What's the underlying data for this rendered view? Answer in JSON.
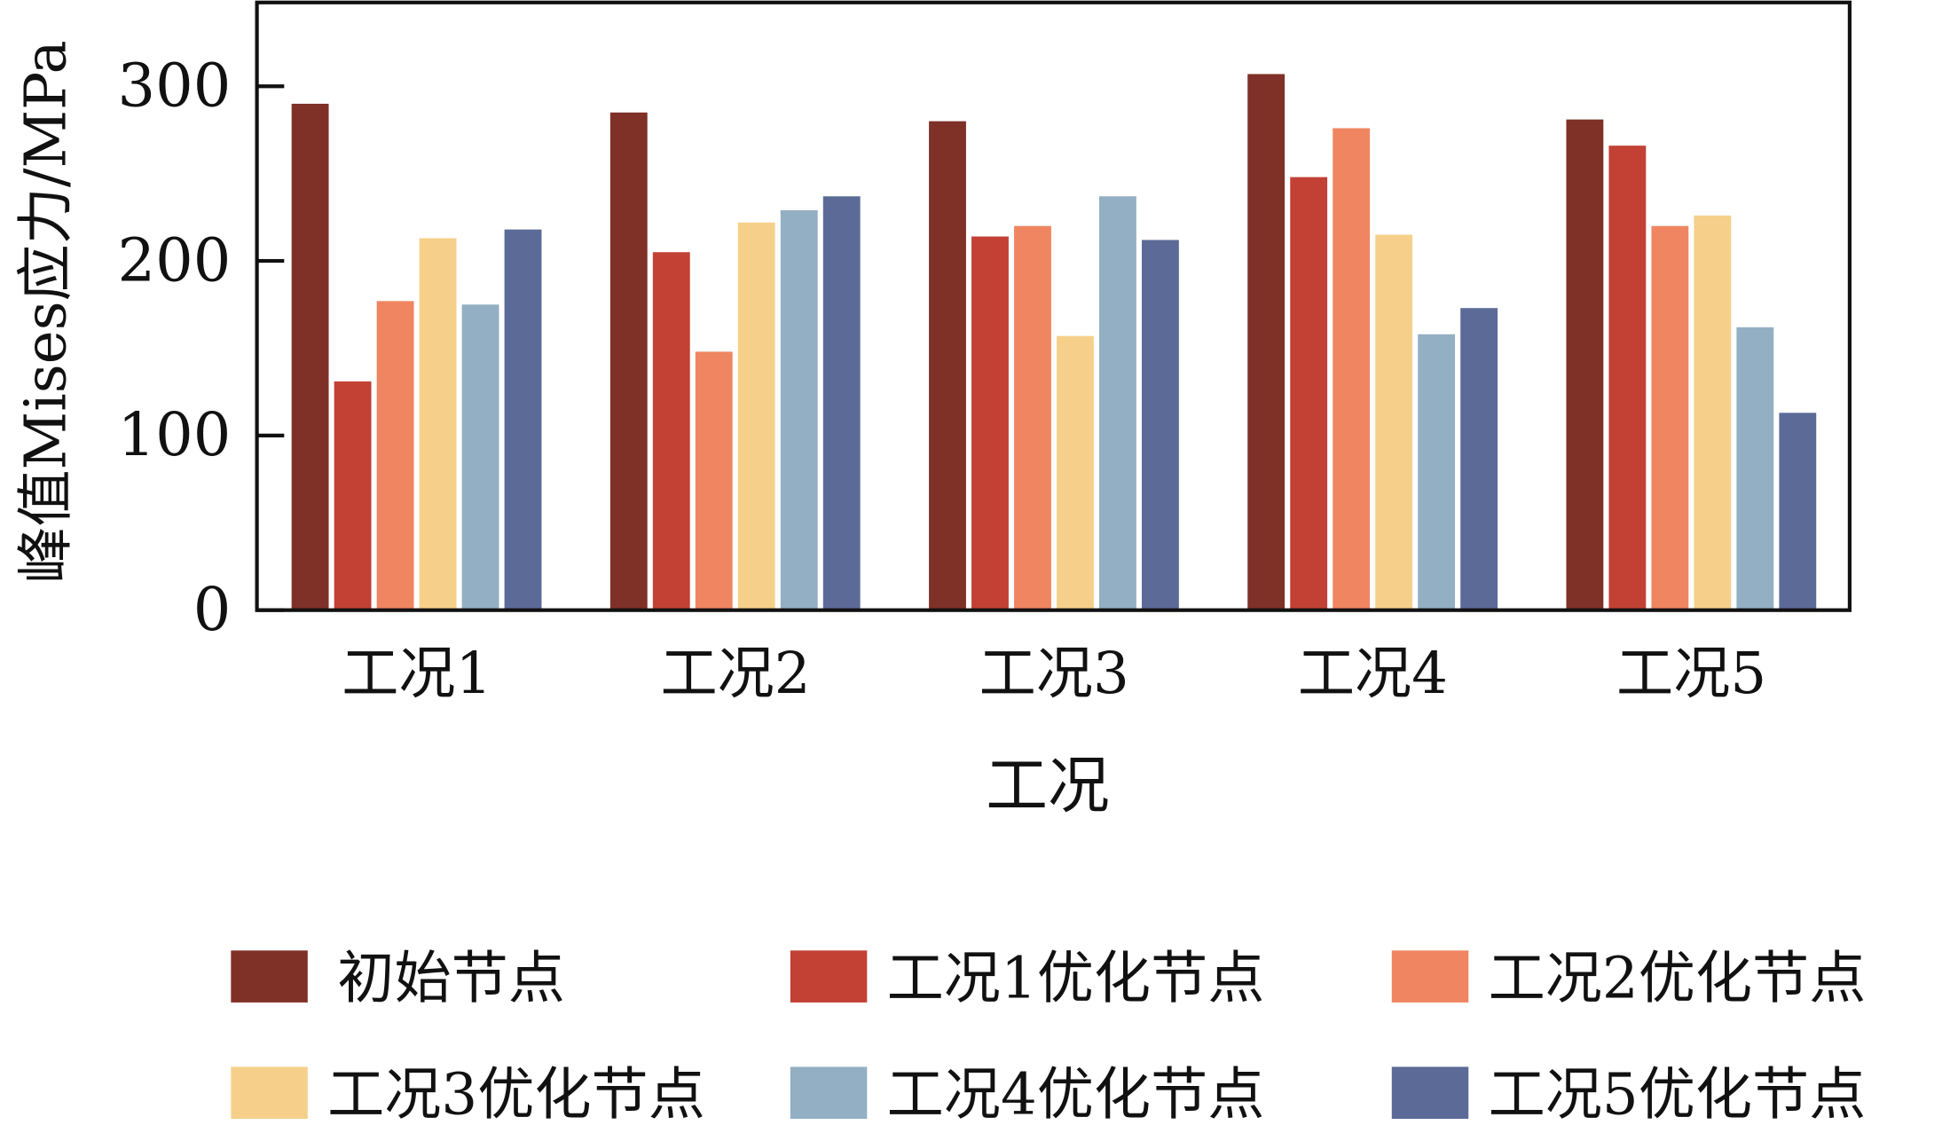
{
  "chart_data": {
    "type": "bar",
    "title": "",
    "xlabel": "工况",
    "ylabel": "峰值Mises应力/MPa",
    "ylim": [
      0,
      348
    ],
    "yticks": [
      0,
      100,
      200,
      300
    ],
    "grid": false,
    "legend_position": "bottom",
    "categories": [
      "工况1",
      "工况2",
      "工况3",
      "工况4",
      "工况5"
    ],
    "series": [
      {
        "name": "初始节点",
        "color": "#7f3128",
        "values": [
          290,
          285,
          280,
          307,
          281
        ]
      },
      {
        "name": "工况1优化节点",
        "color": "#c24034",
        "values": [
          131,
          205,
          214,
          248,
          266
        ]
      },
      {
        "name": "工况2优化节点",
        "color": "#ef8661",
        "values": [
          177,
          148,
          220,
          276,
          220
        ]
      },
      {
        "name": "工况3优化节点",
        "color": "#f6d08a",
        "values": [
          213,
          222,
          157,
          215,
          226
        ]
      },
      {
        "name": "工况4优化节点",
        "color": "#93afc3",
        "values": [
          175,
          229,
          237,
          158,
          162
        ]
      },
      {
        "name": "工况5优化节点",
        "color": "#5c6a97",
        "values": [
          218,
          237,
          212,
          173,
          113
        ]
      }
    ]
  }
}
